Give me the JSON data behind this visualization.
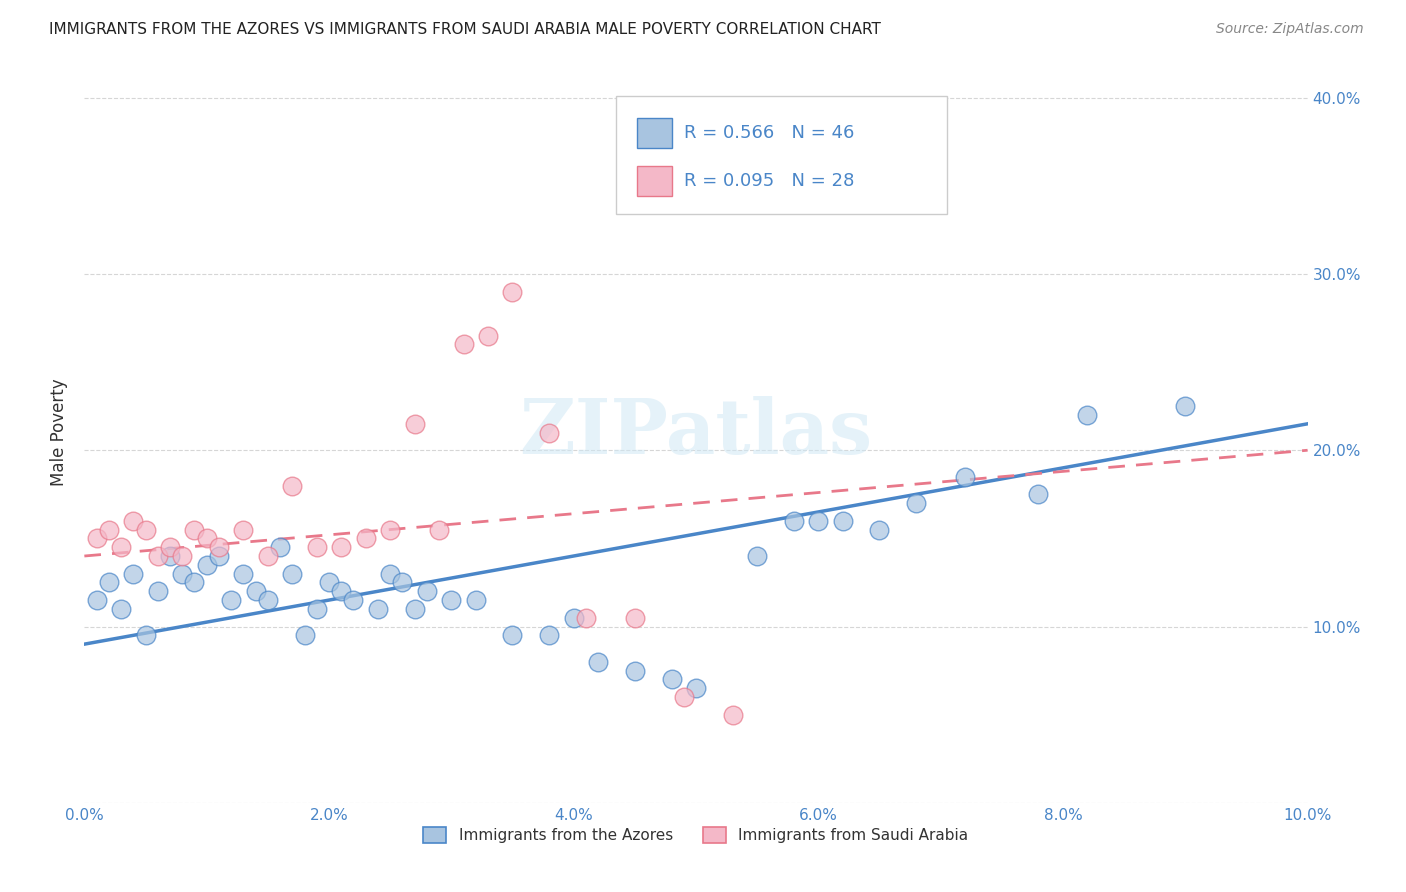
{
  "title": "IMMIGRANTS FROM THE AZORES VS IMMIGRANTS FROM SAUDI ARABIA MALE POVERTY CORRELATION CHART",
  "source": "Source: ZipAtlas.com",
  "ylabel": "Male Poverty",
  "xlim": [
    0.0,
    0.1
  ],
  "ylim": [
    0.0,
    0.42
  ],
  "xticks": [
    0.0,
    0.02,
    0.04,
    0.06,
    0.08,
    0.1
  ],
  "yticks": [
    0.0,
    0.1,
    0.2,
    0.3,
    0.4
  ],
  "xticklabels": [
    "0.0%",
    "2.0%",
    "4.0%",
    "6.0%",
    "8.0%",
    "10.0%"
  ],
  "right_yticklabels": [
    "",
    "10.0%",
    "20.0%",
    "30.0%",
    "40.0%"
  ],
  "azores_color": "#a8c4e0",
  "saudi_color": "#f4b8c8",
  "azores_line_color": "#4a86c8",
  "saudi_line_color": "#e8788a",
  "azores_R": 0.566,
  "azores_N": 46,
  "saudi_R": 0.095,
  "saudi_N": 28,
  "watermark": "ZIPatlas",
  "legend_label_azores": "Immigrants from the Azores",
  "legend_label_saudi": "Immigrants from Saudi Arabia",
  "azores_x": [
    0.001,
    0.002,
    0.003,
    0.004,
    0.005,
    0.006,
    0.007,
    0.008,
    0.009,
    0.01,
    0.011,
    0.012,
    0.013,
    0.014,
    0.015,
    0.016,
    0.017,
    0.018,
    0.019,
    0.02,
    0.021,
    0.022,
    0.024,
    0.025,
    0.026,
    0.027,
    0.028,
    0.03,
    0.032,
    0.035,
    0.038,
    0.04,
    0.042,
    0.045,
    0.048,
    0.05,
    0.055,
    0.058,
    0.06,
    0.062,
    0.065,
    0.068,
    0.072,
    0.078,
    0.082,
    0.09
  ],
  "azores_y": [
    0.115,
    0.125,
    0.11,
    0.13,
    0.095,
    0.12,
    0.14,
    0.13,
    0.125,
    0.135,
    0.14,
    0.115,
    0.13,
    0.12,
    0.115,
    0.145,
    0.13,
    0.095,
    0.11,
    0.125,
    0.12,
    0.115,
    0.11,
    0.13,
    0.125,
    0.11,
    0.12,
    0.115,
    0.115,
    0.095,
    0.095,
    0.105,
    0.08,
    0.075,
    0.07,
    0.065,
    0.14,
    0.16,
    0.16,
    0.16,
    0.155,
    0.17,
    0.185,
    0.175,
    0.22,
    0.225
  ],
  "saudi_x": [
    0.001,
    0.002,
    0.003,
    0.004,
    0.005,
    0.006,
    0.007,
    0.008,
    0.009,
    0.01,
    0.011,
    0.013,
    0.015,
    0.017,
    0.019,
    0.021,
    0.023,
    0.025,
    0.027,
    0.029,
    0.031,
    0.033,
    0.035,
    0.038,
    0.041,
    0.045,
    0.049,
    0.053
  ],
  "saudi_y": [
    0.15,
    0.155,
    0.145,
    0.16,
    0.155,
    0.14,
    0.145,
    0.14,
    0.155,
    0.15,
    0.145,
    0.155,
    0.14,
    0.18,
    0.145,
    0.145,
    0.15,
    0.155,
    0.215,
    0.155,
    0.26,
    0.265,
    0.29,
    0.21,
    0.105,
    0.105,
    0.06,
    0.05
  ],
  "azores_line_y0": 0.09,
  "azores_line_y1": 0.215,
  "saudi_line_y0": 0.14,
  "saudi_line_y1": 0.2
}
